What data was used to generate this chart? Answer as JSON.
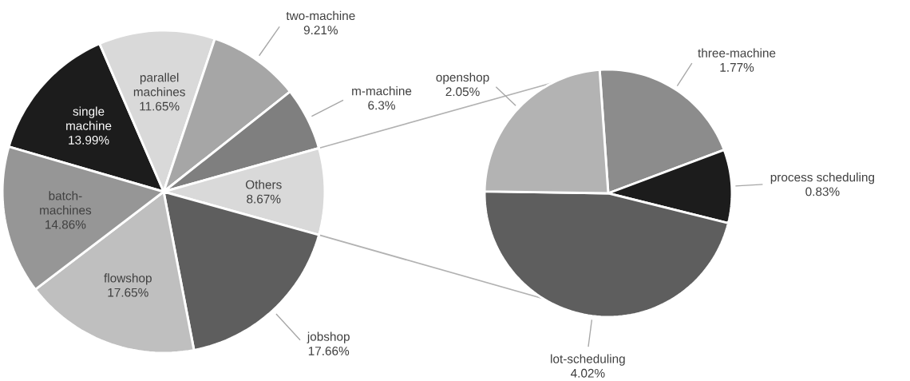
{
  "chart_data": [
    {
      "type": "pie",
      "categories": [
        "single machine",
        "parallel machines",
        "two-machine",
        "m-machine",
        "Others",
        "jobshop",
        "flowshop",
        "batch-machines"
      ],
      "values": [
        13.99,
        11.65,
        9.21,
        6.3,
        8.67,
        17.66,
        17.65,
        14.86
      ],
      "value_labels": [
        "13.99%",
        "11.65%",
        "9.21%",
        "6.3%",
        "8.67%",
        "17.66%",
        "17.65%",
        "14.86%"
      ],
      "colors": [
        "#1c1c1c",
        "#d9d9d9",
        "#a6a6a6",
        "#7f7f7f",
        "#d9d9d9",
        "#5e5e5e",
        "#bfbfbf",
        "#969696"
      ]
    },
    {
      "type": "pie",
      "categories": [
        "three-machine",
        "process scheduling",
        "lot-scheduling",
        "openshop"
      ],
      "values": [
        1.77,
        0.83,
        4.02,
        2.05
      ],
      "value_labels": [
        "1.77%",
        "0.83%",
        "4.02%",
        "2.05%"
      ],
      "colors": [
        "#8c8c8c",
        "#1c1c1c",
        "#5e5e5e",
        "#b3b3b3"
      ]
    }
  ]
}
